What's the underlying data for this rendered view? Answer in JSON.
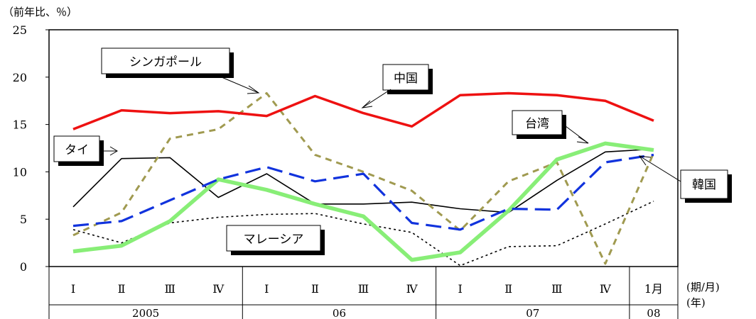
{
  "chart_data": {
    "type": "line",
    "y_unit_label": "（前年比、％）",
    "x_unit_label": "(期/月)",
    "year_unit_label": "(年)",
    "ylim": [
      0,
      25
    ],
    "y_ticks": [
      "0",
      "5",
      "10",
      "15",
      "20",
      "25"
    ],
    "grid": false,
    "categories": [
      "Ⅰ",
      "Ⅱ",
      "Ⅲ",
      "Ⅳ",
      "Ⅰ",
      "Ⅱ",
      "Ⅲ",
      "Ⅳ",
      "Ⅰ",
      "Ⅱ",
      "Ⅲ",
      "Ⅳ",
      "1月"
    ],
    "year_groups": [
      {
        "label": "2005",
        "count": 4
      },
      {
        "label": "06",
        "count": 4
      },
      {
        "label": "07",
        "count": 4
      },
      {
        "label": "08",
        "count": 1
      }
    ],
    "series": [
      {
        "name": "中国",
        "color": "#ee1111",
        "values": [
          14.5,
          16.5,
          16.2,
          16.4,
          15.9,
          18.0,
          16.2,
          14.8,
          18.1,
          18.3,
          18.1,
          17.5,
          15.4
        ]
      },
      {
        "name": "シンガポール",
        "color": "#a09a50",
        "values": [
          3.3,
          5.7,
          13.5,
          14.5,
          18.3,
          11.8,
          10.0,
          8.0,
          3.8,
          9.0,
          11.0,
          0.3,
          12.0
        ]
      },
      {
        "name": "タイ",
        "color": "#000000",
        "values": [
          6.3,
          11.4,
          11.5,
          7.3,
          9.8,
          6.6,
          6.6,
          6.8,
          6.1,
          5.7,
          9.1,
          12.1,
          12.4
        ]
      },
      {
        "name": "台湾",
        "color": "#88ee77",
        "values": [
          1.6,
          2.2,
          4.8,
          9.2,
          8.1,
          6.6,
          5.3,
          0.7,
          1.5,
          5.9,
          11.3,
          13.0,
          12.3
        ]
      },
      {
        "name": "韓国",
        "color": "#1133dd",
        "values": [
          4.3,
          4.8,
          7.0,
          9.2,
          10.5,
          9.0,
          9.8,
          4.6,
          3.9,
          6.1,
          6.0,
          11.0,
          11.8
        ]
      },
      {
        "name": "マレーシア",
        "color": "#000000",
        "values": [
          3.9,
          2.5,
          4.6,
          5.2,
          5.5,
          5.6,
          4.5,
          3.6,
          0.1,
          2.1,
          2.2,
          4.5,
          6.9
        ]
      }
    ]
  }
}
